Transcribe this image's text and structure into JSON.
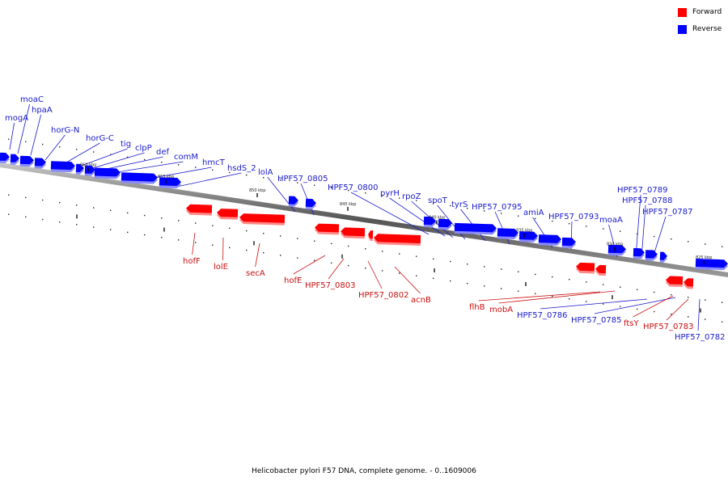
{
  "legend": {
    "forward_label": "Forward",
    "forward_color": "#ff0000",
    "reverse_label": "Reverse",
    "reverse_color": "#0000ff"
  },
  "caption": "Helicobacter pylori F57 DNA, complete genome. - 0..1609006",
  "scale_ticks": [
    "860 kbp",
    "855 kbp",
    "850 kbp",
    "845 kbp",
    "840 kbp",
    "835 kbp",
    "830 kbp",
    "825 kbp"
  ],
  "forward_genes": [
    "hofF",
    "lolE",
    "secA",
    "hofE",
    "HPF57_0803",
    "HPF57_0802",
    "acnB",
    "flhB",
    "mobA",
    "ftsY",
    "HPF57_0783"
  ],
  "reverse_genes": [
    "mogA",
    "moaC",
    "hpaA",
    "horG-N",
    "horG-C",
    "tig",
    "clpP",
    "def",
    "comM",
    "hmcT",
    "hsdS_2",
    "lolA",
    "HPF57_0805",
    "HPF57_0800",
    "pyrH",
    "rpoZ",
    "spoT",
    "tyrS",
    "HPF57_0795",
    "amiA",
    "HPF57_0793",
    "moaA",
    "HPF57_0789",
    "HPF57_0788",
    "HPF57_0787",
    "HPF57_0786",
    "HPF57_0785",
    "HPF57_0782"
  ]
}
